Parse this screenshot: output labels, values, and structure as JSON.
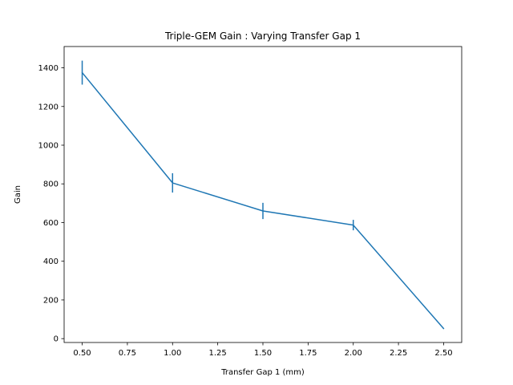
{
  "chart_data": {
    "type": "line",
    "title": "Triple-GEM Gain : Varying Transfer Gap 1",
    "xlabel": "Transfer Gap 1 (mm)",
    "ylabel": "Gain",
    "xlim": [
      0.4,
      2.6
    ],
    "ylim": [
      -20,
      1510
    ],
    "xticks": [
      0.5,
      0.75,
      1.0,
      1.25,
      1.5,
      1.75,
      2.0,
      2.25,
      2.5
    ],
    "xtick_labels": [
      "0.50",
      "0.75",
      "1.00",
      "1.25",
      "1.50",
      "1.75",
      "2.00",
      "2.25",
      "2.50"
    ],
    "yticks": [
      0,
      200,
      400,
      600,
      800,
      1000,
      1200,
      1400
    ],
    "ytick_labels": [
      "0",
      "200",
      "400",
      "600",
      "800",
      "1000",
      "1200",
      "1400"
    ],
    "grid": false,
    "legend": "none",
    "series": [
      {
        "x": [
          0.5,
          1.0,
          1.5,
          2.0,
          2.5
        ],
        "y": [
          1375,
          805,
          660,
          587,
          52
        ],
        "yerr": [
          62,
          50,
          42,
          27,
          0
        ],
        "color": "#1f77b4"
      }
    ]
  }
}
